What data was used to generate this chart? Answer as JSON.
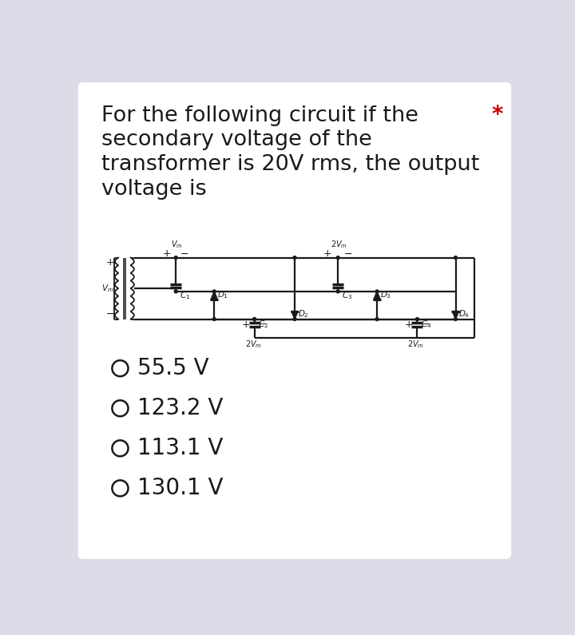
{
  "title_line1": "For the following circuit if the",
  "title_line2": "secondary voltage of the",
  "title_line3": "transformer is 20V rms, the output",
  "title_line4": "voltage is",
  "asterisk": "*",
  "options": [
    "55.5 V",
    "123.2 V",
    "113.1 V",
    "130.1 V"
  ],
  "bg_color": "#dcdce8",
  "card_color": "#ffffff",
  "text_color": "#1a1a1a",
  "circuit_color": "#1a1a1a",
  "asterisk_color": "#cc0000",
  "title_fontsize": 19.5,
  "option_fontsize": 20,
  "circuit_lw": 1.6
}
